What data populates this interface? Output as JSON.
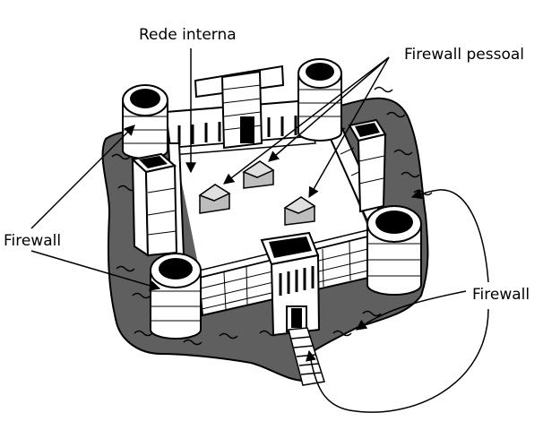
{
  "labels": {
    "internal_network": "Rede interna",
    "personal_firewall": "Firewall pessoal",
    "firewall_left": "Firewall",
    "firewall_right": "Firewall"
  },
  "colors": {
    "ink": "#000000",
    "moat": "#5f5f5f",
    "house": "#bdbdbd",
    "paper": "#ffffff"
  }
}
